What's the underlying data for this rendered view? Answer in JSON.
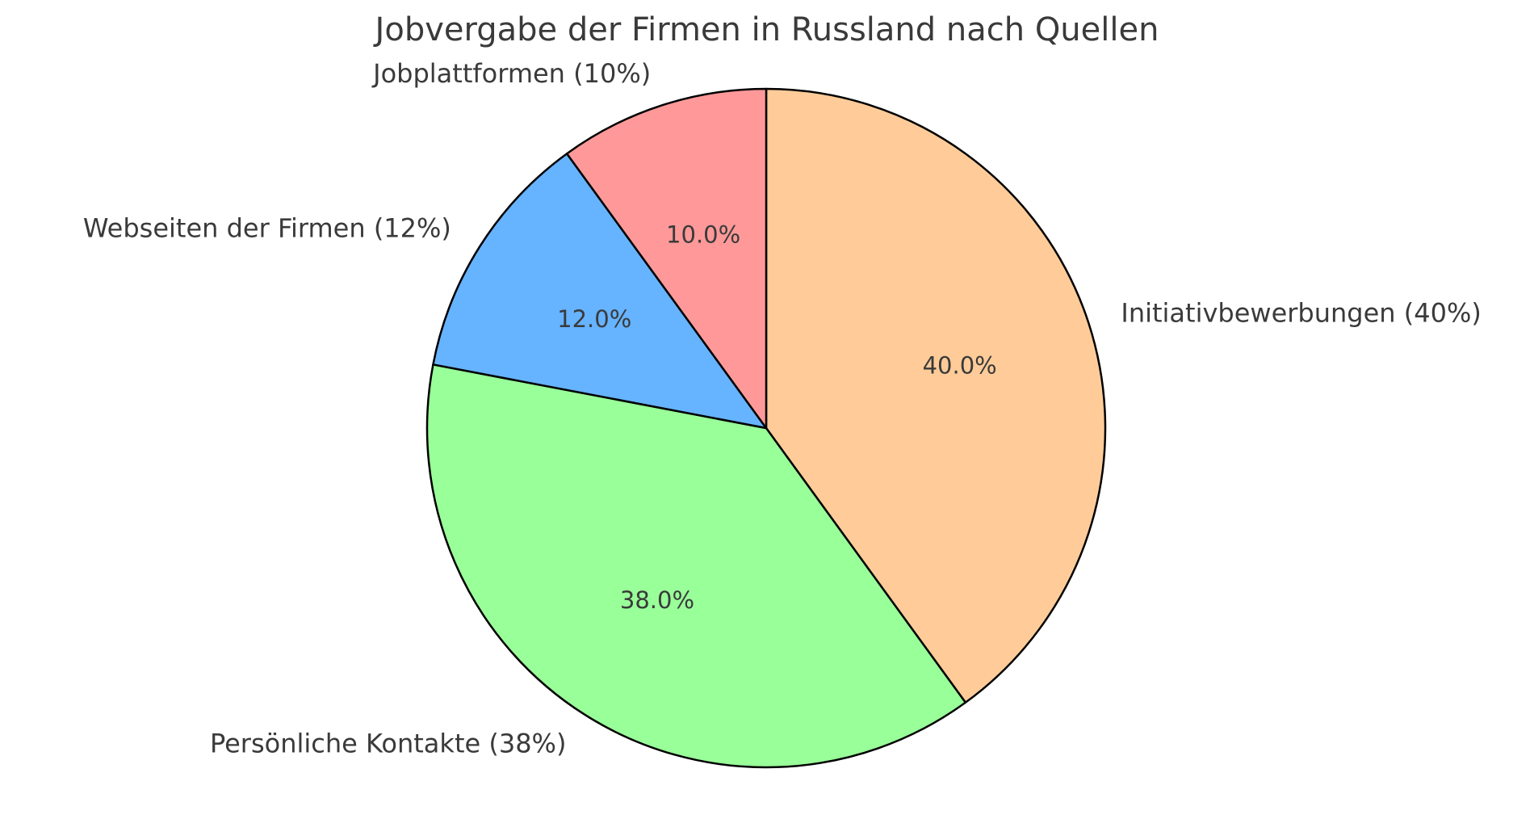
{
  "chart_data": {
    "type": "pie",
    "title": "Jobvergabe der Firmen in Russland nach Quellen",
    "categories": [
      "Initiativbewerbungen",
      "Persönliche Kontakte",
      "Webseiten der Firmen",
      "Jobplattformen"
    ],
    "values": [
      40,
      38,
      12,
      10
    ],
    "unit": "%",
    "slices": [
      {
        "id": "initiativbewerbungen",
        "category": "Initiativbewerbungen",
        "value": 40,
        "label": "Initiativbewerbungen (40%)",
        "pct_label": "40.0%",
        "color": "#ffcc99"
      },
      {
        "id": "persoenliche-kontakte",
        "category": "Persönliche Kontakte",
        "value": 38,
        "label": "Persönliche Kontakte (38%)",
        "pct_label": "38.0%",
        "color": "#99ff99"
      },
      {
        "id": "webseiten-der-firmen",
        "category": "Webseiten der Firmen",
        "value": 12,
        "label": "Webseiten der Firmen (12%)",
        "pct_label": "12.0%",
        "color": "#66b3ff"
      },
      {
        "id": "jobplattformen",
        "category": "Jobplattformen",
        "value": 10,
        "label": "Jobplattformen (10%)",
        "pct_label": "10.0%",
        "color": "#ff9999"
      }
    ],
    "start_angle": 90,
    "direction": "clockwise",
    "label_distance": 1.1,
    "pct_distance": 0.6,
    "edge_color": "#000000",
    "edge_width": 2.5,
    "text_color": "#3a3a3a",
    "background": "#ffffff",
    "legend": "none"
  }
}
